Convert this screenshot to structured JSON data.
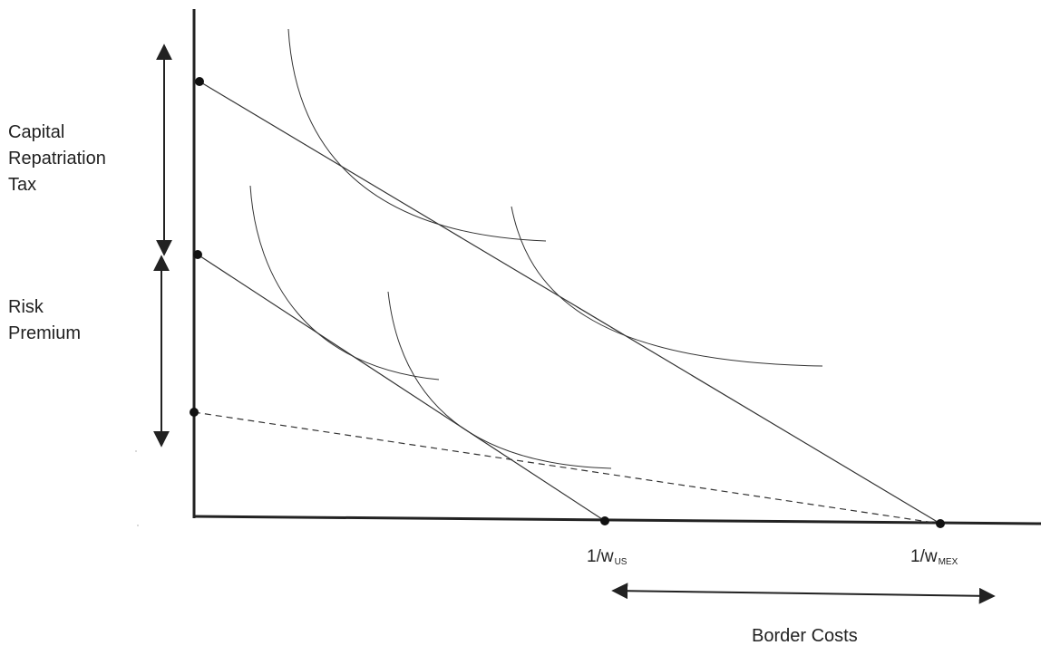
{
  "diagram": {
    "labels": {
      "capital_repatriation_tax": [
        "Capital",
        "Repatriation",
        "Tax"
      ],
      "risk_premium": [
        "Risk",
        "Premium"
      ],
      "border_costs": "Border Costs"
    },
    "tick_labels": {
      "us": {
        "main": "1/w",
        "sub": "US"
      },
      "mex": {
        "main": "1/w",
        "sub": "MEX"
      }
    },
    "colors": {
      "ink": "#222222",
      "background": "#ffffff"
    }
  }
}
